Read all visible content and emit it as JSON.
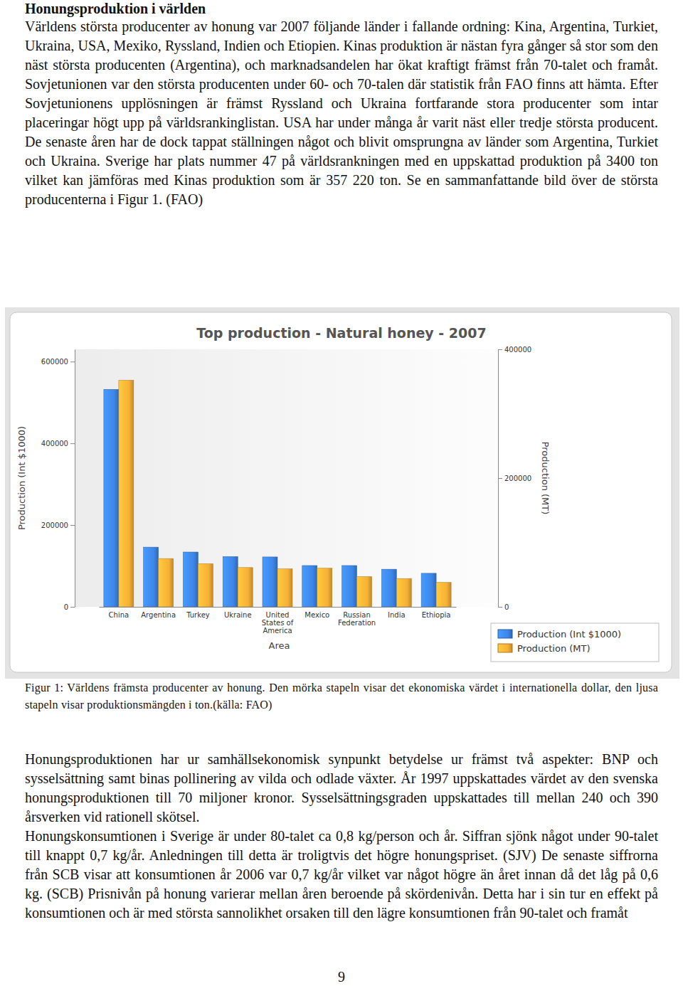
{
  "document": {
    "heading": "Honungsproduktion i världen",
    "paragraphs": [
      "Världens största producenter av honung var 2007 följande länder i fallande ordning: Kina, Argentina, Turkiet, Ukraina, USA, Mexiko, Ryssland, Indien och Etiopien. Kinas produktion är nästan fyra gånger så stor som den näst största producenten (Argentina), och marknadsandelen har ökat kraftigt främst från 70-talet och framåt. Sovjetunionen var den största producenten under 60- och 70-talen där statistik från FAO finns att hämta. Efter Sovjetunionens upplösningen är främst Ryssland och Ukraina fortfarande stora producenter som intar placeringar högt upp på världsrankinglistan. USA har under många år varit näst eller tredje största producent. De senaste åren har de dock tappat ställningen något och blivit omsprungna av länder som Argentina, Turkiet och Ukraina. Sverige har plats nummer 47 på världsrankningen med en uppskattad produktion på 3400 ton vilket kan jämföras med Kinas produktion som är 357 220 ton.  Se en sammanfattande bild över de största producenterna i Figur 1. (FAO)"
    ],
    "caption": "Figur 1: Världens främsta producenter av honung. Den mörka stapeln visar det ekonomiska värdet i internationella dollar, den ljusa stapeln visar produktionsmängden i ton.(källa: FAO)",
    "paragraphs_after": [
      "Honungsproduktionen har ur samhällsekonomisk synpunkt betydelse ur främst två aspekter: BNP och sysselsättning samt binas pollinering av vilda och odlade växter. År 1997 uppskattades värdet av den svenska honungsproduktionen till 70 miljoner kronor. Sysselsättningsgraden uppskattades till mellan 240 och 390 årsverken vid rationell skötsel.",
      "Honungskonsumtionen i Sverige är under 80-talet ca 0,8 kg/person och år. Siffran sjönk något under 90-talet till knappt 0,7 kg/år. Anledningen till detta är troligtvis det högre honungspriset. (SJV) De senaste siffrorna från SCB visar att konsumtionen år 2006 var 0,7 kg/år vilket var något högre än året innan då det låg på 0,6 kg. (SCB) Prisnivån på honung varierar mellan åren beroende på skördenivån. Detta har i sin tur en effekt på konsumtionen och är med största sannolikhet orsaken till den lägre konsumtionen från 90-talet och framåt"
    ],
    "page_number": 9
  },
  "chart_data": {
    "type": "bar",
    "title": "Top production - Natural honey - 2007",
    "categories": [
      "China",
      "Argentina",
      "Turkey",
      "Ukraine",
      "United States of America",
      "Mexico",
      "Russian Federation",
      "India",
      "Ethiopia"
    ],
    "x_label": "Area",
    "y_label": "Production (Int $1000)",
    "y2_label": "Production (MT)",
    "ylim": [
      0,
      630000
    ],
    "yticks": [
      0,
      200000,
      400000,
      600000
    ],
    "y2lim": [
      0,
      400000
    ],
    "y2ticks": [
      0,
      200000,
      400000
    ],
    "grid": false,
    "legend": "bottom-right",
    "series": [
      {
        "name": "Production (Int $1000)",
        "color": "#3d86e8",
        "values": [
          532000,
          146000,
          134000,
          123000,
          122000,
          101000,
          101000,
          92000,
          82000
        ]
      },
      {
        "name": "Production (MT)",
        "color": "#f7b035",
        "axis": "y2",
        "values": [
          352000,
          75000,
          67000,
          61000,
          59000,
          60000,
          47000,
          44000,
          38000
        ]
      }
    ]
  }
}
